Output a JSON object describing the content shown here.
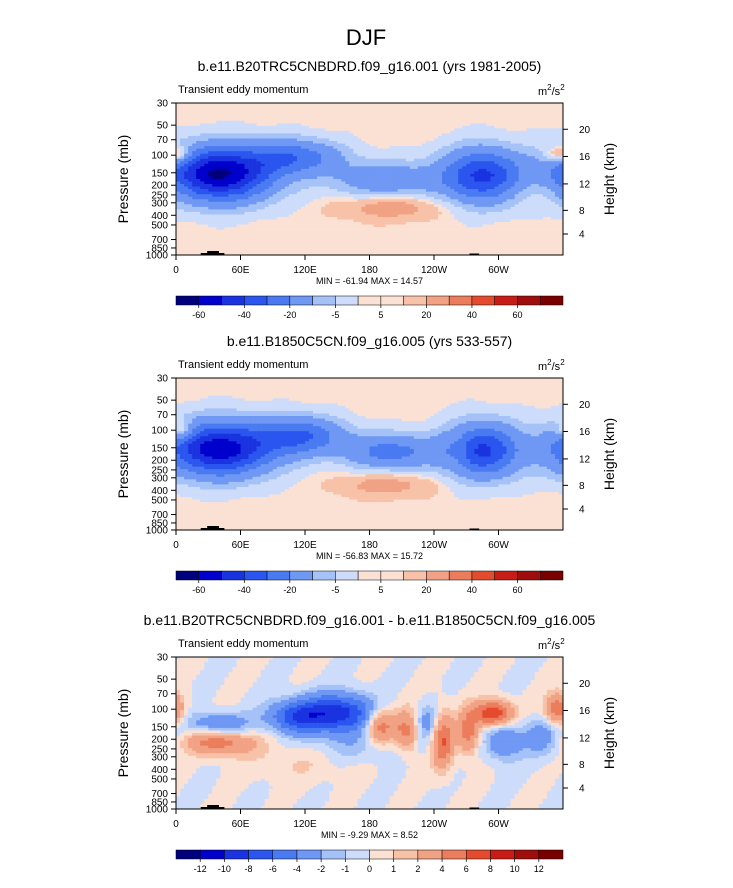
{
  "figure_title": "DJF",
  "chart_data": [
    {
      "type": "heatmap",
      "title": "b.e11.B20TRC5CNBDRD.f09_g16.001 (yrs 1981-2005)",
      "subtitle_left": "Transient eddy momentum",
      "units": "m2/s2",
      "units_base": "m",
      "units_exp1": "2",
      "units_mid": "/s",
      "units_exp2": "2",
      "ylabel_left": "Pressure (mb)",
      "ylabel_right": "Height (km)",
      "xticks": [
        "0",
        "60E",
        "120E",
        "180",
        "120W",
        "60W"
      ],
      "xtick_lon": [
        0,
        60,
        120,
        180,
        240,
        300
      ],
      "xlim": [
        0,
        360
      ],
      "yticks": [
        "30",
        "50",
        "70",
        "100",
        "150",
        "200",
        "250",
        "300",
        "400",
        "500",
        "700",
        "850",
        "1000"
      ],
      "ytick_p": [
        30,
        50,
        70,
        100,
        150,
        200,
        250,
        300,
        400,
        500,
        700,
        850,
        1000
      ],
      "height_ticks": [
        "20",
        "16",
        "12",
        "8",
        "4"
      ],
      "height_p": [
        55,
        103,
        194,
        357,
        616
      ],
      "ylim": [
        30,
        1000
      ],
      "stats": "MIN = -61.94  MAX = 14.57",
      "colorbar_labels": [
        "-60",
        "-40",
        "-20",
        "-5",
        "5",
        "20",
        "40",
        "60"
      ],
      "levels": [
        -70,
        -60,
        -50,
        -40,
        -30,
        -20,
        -10,
        -5,
        -1,
        1,
        5,
        10,
        20,
        30,
        40,
        50,
        60,
        70
      ],
      "features": [
        {
          "lon": 40,
          "p": 155,
          "value": -61.9,
          "rlon": 34,
          "rlp": 0.42
        },
        {
          "lon": 110,
          "p": 105,
          "value": -26,
          "rlon": 30,
          "rlp": 0.28
        },
        {
          "lon": 195,
          "p": 175,
          "value": -18,
          "rlon": 34,
          "rlp": 0.28
        },
        {
          "lon": 285,
          "p": 160,
          "value": -42,
          "rlon": 26,
          "rlp": 0.42
        },
        {
          "lon": 200,
          "p": 330,
          "value": 9,
          "rlon": 32,
          "rlp": 0.2
        },
        {
          "lon": 340,
          "p": 230,
          "value": 5,
          "rlon": 20,
          "rlp": 0.25
        },
        {
          "lon": 4,
          "p": 100,
          "value": 14.6,
          "rlon": 8,
          "rlp": 0.15
        },
        {
          "lon": 352,
          "p": 100,
          "value": 10,
          "rlon": 8,
          "rlp": 0.15
        }
      ]
    },
    {
      "type": "heatmap",
      "title": "b.e11.B1850C5CN.f09_g16.005 (yrs 533-557)",
      "subtitle_left": "Transient eddy momentum",
      "units": "m2/s2",
      "units_base": "m",
      "units_exp1": "2",
      "units_mid": "/s",
      "units_exp2": "2",
      "ylabel_left": "Pressure (mb)",
      "ylabel_right": "Height (km)",
      "xticks": [
        "0",
        "60E",
        "120E",
        "180",
        "120W",
        "60W"
      ],
      "xtick_lon": [
        0,
        60,
        120,
        180,
        240,
        300
      ],
      "xlim": [
        0,
        360
      ],
      "yticks": [
        "30",
        "50",
        "70",
        "100",
        "150",
        "200",
        "250",
        "300",
        "400",
        "500",
        "700",
        "850",
        "1000"
      ],
      "ytick_p": [
        30,
        50,
        70,
        100,
        150,
        200,
        250,
        300,
        400,
        500,
        700,
        850,
        1000
      ],
      "height_ticks": [
        "20",
        "16",
        "12",
        "8",
        "4"
      ],
      "height_p": [
        55,
        103,
        194,
        357,
        616
      ],
      "ylim": [
        30,
        1000
      ],
      "stats": "MIN = -56.83  MAX = 15.72",
      "colorbar_labels": [
        "-60",
        "-40",
        "-20",
        "-5",
        "5",
        "20",
        "40",
        "60"
      ],
      "levels": [
        -70,
        -60,
        -50,
        -40,
        -30,
        -20,
        -10,
        -5,
        -1,
        1,
        5,
        10,
        20,
        30,
        40,
        50,
        60,
        70
      ],
      "features": [
        {
          "lon": 40,
          "p": 155,
          "value": -56.8,
          "rlon": 34,
          "rlp": 0.42
        },
        {
          "lon": 115,
          "p": 115,
          "value": -30,
          "rlon": 28,
          "rlp": 0.3
        },
        {
          "lon": 200,
          "p": 165,
          "value": -24,
          "rlon": 30,
          "rlp": 0.28
        },
        {
          "lon": 285,
          "p": 160,
          "value": -42,
          "rlon": 24,
          "rlp": 0.42
        },
        {
          "lon": 195,
          "p": 350,
          "value": 8,
          "rlon": 30,
          "rlp": 0.2
        },
        {
          "lon": 265,
          "p": 160,
          "value": 6,
          "rlon": 8,
          "rlp": 0.3
        },
        {
          "lon": 5,
          "p": 100,
          "value": 15.7,
          "rlon": 8,
          "rlp": 0.15
        }
      ]
    },
    {
      "type": "heatmap",
      "title": "b.e11.B20TRC5CNBDRD.f09_g16.001 - b.e11.B1850C5CN.f09_g16.005",
      "subtitle_left": "Transient eddy momentum",
      "units": "m2/s2",
      "units_base": "m",
      "units_exp1": "2",
      "units_mid": "/s",
      "units_exp2": "2",
      "ylabel_left": "Pressure (mb)",
      "ylabel_right": "Height (km)",
      "xticks": [
        "0",
        "60E",
        "120E",
        "180",
        "120W",
        "60W"
      ],
      "xtick_lon": [
        0,
        60,
        120,
        180,
        240,
        300
      ],
      "xlim": [
        0,
        360
      ],
      "yticks": [
        "30",
        "50",
        "70",
        "100",
        "150",
        "200",
        "250",
        "300",
        "400",
        "500",
        "700",
        "850",
        "1000"
      ],
      "ytick_p": [
        30,
        50,
        70,
        100,
        150,
        200,
        250,
        300,
        400,
        500,
        700,
        850,
        1000
      ],
      "height_ticks": [
        "20",
        "16",
        "12",
        "8",
        "4"
      ],
      "height_p": [
        55,
        103,
        194,
        357,
        616
      ],
      "ylim": [
        30,
        1000
      ],
      "stats": "MIN = -9.29  MAX = 8.52",
      "colorbar_labels": [
        "-12",
        "-10",
        "-8",
        "-6",
        "-4",
        "-2",
        "-1",
        "0",
        "1",
        "2",
        "4",
        "6",
        "8",
        "10",
        "12"
      ],
      "levels": [
        -14,
        -12,
        -10,
        -8,
        -6,
        -4,
        -2,
        -1,
        0,
        1,
        2,
        4,
        6,
        8,
        10,
        12,
        14
      ],
      "features": [
        {
          "lon": 150,
          "p": 110,
          "value": -9.3,
          "rlon": 25,
          "rlp": 0.3
        },
        {
          "lon": 110,
          "p": 120,
          "value": -6,
          "rlon": 18,
          "rlp": 0.25
        },
        {
          "lon": 40,
          "p": 215,
          "value": 5,
          "rlon": 22,
          "rlp": 0.2
        },
        {
          "lon": 190,
          "p": 145,
          "value": 6,
          "rlon": 10,
          "rlp": 0.3
        },
        {
          "lon": 215,
          "p": 165,
          "value": 5,
          "rlon": 8,
          "rlp": 0.35
        },
        {
          "lon": 248,
          "p": 200,
          "value": 6.5,
          "rlon": 7,
          "rlp": 0.45
        },
        {
          "lon": 272,
          "p": 170,
          "value": 5,
          "rlon": 7,
          "rlp": 0.35
        },
        {
          "lon": 295,
          "p": 110,
          "value": 8.5,
          "rlon": 12,
          "rlp": 0.2
        },
        {
          "lon": 355,
          "p": 100,
          "value": 6,
          "rlon": 8,
          "rlp": 0.25
        },
        {
          "lon": 40,
          "p": 140,
          "value": -4,
          "rlon": 20,
          "rlp": 0.18
        },
        {
          "lon": 305,
          "p": 210,
          "value": -4,
          "rlon": 12,
          "rlp": 0.3
        },
        {
          "lon": 235,
          "p": 140,
          "value": -3,
          "rlon": 10,
          "rlp": 0.3
        },
        {
          "lon": 160,
          "p": 240,
          "value": -2,
          "rlon": 40,
          "rlp": 0.3
        },
        {
          "lon": 340,
          "p": 190,
          "value": -3,
          "rlon": 12,
          "rlp": 0.3
        },
        {
          "lon": 120,
          "p": 300,
          "value": 1.5,
          "rlon": 40,
          "rlp": 0.35
        }
      ]
    }
  ],
  "colors": {
    "negative": [
      "#00007f",
      "#0000cc",
      "#1a33e0",
      "#2a55ee",
      "#4a7af2",
      "#6f98f4",
      "#a5c2f8",
      "#cddcfb"
    ],
    "positive": [
      "#fbe1d4",
      "#f8c2a8",
      "#f2a284",
      "#eb7d5c",
      "#e44a2e",
      "#c81c17",
      "#a00d0d",
      "#7a0000"
    ],
    "topography": "#000000"
  }
}
